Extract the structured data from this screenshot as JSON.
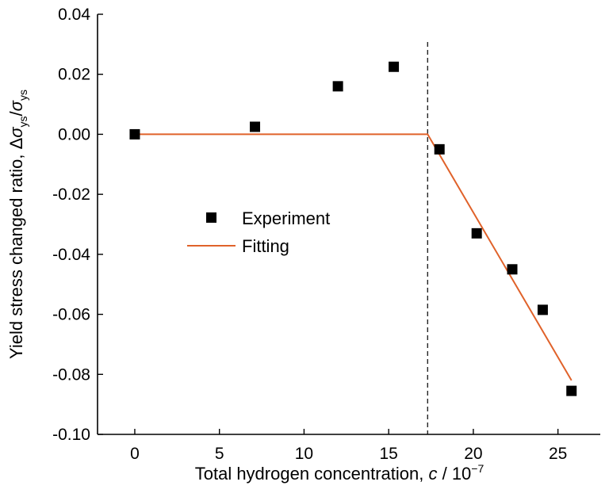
{
  "chart_data": {
    "type": "scatter",
    "title": "",
    "xlabel": {
      "prefix": "Total hydrogen concentration, ",
      "var": "c",
      "suffix": " / 10",
      "exp": "−7"
    },
    "ylabel": {
      "prefix": "Yield stress changed ratio, ",
      "delta": "Δ",
      "sigma": "σ",
      "sub": "ys",
      "slash": "/"
    },
    "xlim": [
      -2.2,
      27.5
    ],
    "ylim": [
      -0.1,
      0.04
    ],
    "xticks": [
      0,
      5,
      10,
      15,
      20,
      25
    ],
    "xtick_labels": [
      "0",
      "5",
      "10",
      "15",
      "20",
      "25"
    ],
    "yticks": [
      -0.1,
      -0.08,
      -0.06,
      -0.04,
      -0.02,
      0.0,
      0.02,
      0.04
    ],
    "ytick_labels": [
      "-0.10",
      "-0.08",
      "-0.06",
      "-0.04",
      "-0.02",
      "0.00",
      "0.02",
      "0.04"
    ],
    "vline": {
      "x": 17.3,
      "style": "dashed"
    },
    "series": [
      {
        "name": "Experiment",
        "kind": "scatter",
        "marker": "square",
        "color": "#000000",
        "x": [
          0,
          7.1,
          12.0,
          15.3,
          18.0,
          20.2,
          22.3,
          24.1,
          25.8
        ],
        "y": [
          0.0,
          0.0025,
          0.016,
          0.0225,
          -0.005,
          -0.033,
          -0.045,
          -0.0585,
          -0.0855
        ]
      },
      {
        "name": "Fitting",
        "kind": "line",
        "color": "#e0622a",
        "x": [
          0,
          17.3,
          25.8
        ],
        "y": [
          0.0,
          0.0,
          -0.082
        ]
      }
    ],
    "legend": {
      "position": "center-left"
    }
  }
}
